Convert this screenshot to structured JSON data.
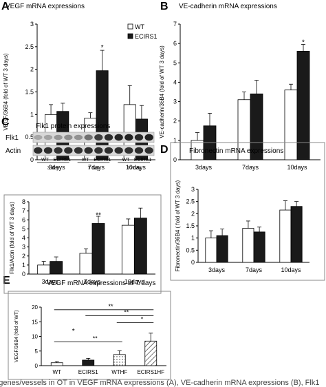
{
  "panel_letters": {
    "a": "A",
    "b": "B",
    "c": "C",
    "d": "D",
    "e": "E"
  },
  "blot": {
    "rows": [
      "Flk1",
      "Actin"
    ],
    "groups": [
      {
        "labels": [
          "WT",
          "ECIRS1"
        ],
        "time": "3 day"
      },
      {
        "labels": [
          "WT",
          "ECIRS1"
        ],
        "time": "7 day"
      },
      {
        "labels": [
          "WT",
          "ECIRS1"
        ],
        "time": "10 day"
      }
    ],
    "flk1_intensity": [
      0.3,
      0.32,
      0.38,
      0.42,
      0.4,
      0.55,
      0.8,
      0.88,
      0.92,
      0.93,
      0.9,
      0.95
    ],
    "actin_intensity": [
      0.88,
      0.88,
      0.86,
      0.88,
      0.86,
      0.88,
      0.86,
      0.88,
      0.88,
      0.86,
      0.88,
      0.87
    ]
  },
  "caption_fragment": "of genes/vessels in OT in VEGF mRNA expressions (A), VE-cadherin mRNA expressions (B), Flk1",
  "colors": {
    "wt": "#ffffff",
    "ecirs1": "#1a1a1a",
    "axis": "#000000",
    "frame": "#888888"
  },
  "chart_data": [
    {
      "id": "A",
      "type": "bar",
      "title": "VEGF mRNA expressions",
      "ylabel": "VEGF/36B4 (fold of WT 3 days)",
      "categories": [
        "3days",
        "7days",
        "10days"
      ],
      "ylim": [
        0,
        3
      ],
      "yticks": [
        0,
        0.5,
        1,
        1.5,
        2,
        2.5,
        3
      ],
      "legend": "top-right",
      "series": [
        {
          "name": "WT",
          "values": [
            1.0,
            0.92,
            1.22
          ],
          "errors": [
            0.22,
            0.12,
            0.42
          ]
        },
        {
          "name": "ECIRS1",
          "values": [
            1.07,
            1.97,
            0.9
          ],
          "errors": [
            0.18,
            0.45,
            0.3
          ]
        }
      ],
      "annotations": [
        {
          "text": "*",
          "category": 1,
          "y": 2.5
        }
      ]
    },
    {
      "id": "B",
      "type": "bar",
      "title": "VE-cadherin mRNA expressions",
      "ylabel": "VE-cadherin/36B4 (fold of WT 3 days)",
      "categories": [
        "3days",
        "7days",
        "10days"
      ],
      "ylim": [
        0,
        7
      ],
      "yticks": [
        0,
        1,
        2,
        3,
        4,
        5,
        6,
        7
      ],
      "series": [
        {
          "name": "WT",
          "values": [
            1.0,
            3.1,
            3.6
          ],
          "errors": [
            0.4,
            0.4,
            0.3
          ]
        },
        {
          "name": "ECIRS1",
          "values": [
            1.75,
            3.4,
            5.6
          ],
          "errors": [
            0.65,
            0.7,
            0.35
          ]
        }
      ],
      "annotations": [
        {
          "text": "*",
          "category": 2,
          "y": 6.1
        }
      ]
    },
    {
      "id": "C",
      "type": "bar",
      "title": "Flk1 protein expressions",
      "ylabel": "Flk1/Actin (fold of WT 3 days)",
      "categories": [
        "3days",
        "7days",
        "10days"
      ],
      "ylim": [
        0,
        8
      ],
      "yticks": [
        0,
        1,
        2,
        3,
        4,
        5,
        6,
        7,
        8
      ],
      "series": [
        {
          "name": "WT",
          "values": [
            1.0,
            2.3,
            5.4
          ],
          "errors": [
            0.4,
            0.5,
            0.7
          ]
        },
        {
          "name": "ECIRS1",
          "values": [
            1.4,
            5.6,
            6.2
          ],
          "errors": [
            0.5,
            0.8,
            1.1
          ]
        }
      ],
      "annotations": [
        {
          "text": "**",
          "category": 1,
          "y": 6.6
        }
      ]
    },
    {
      "id": "D",
      "type": "bar",
      "title": "Fibronectin mRNA expressions",
      "ylabel": "Fibronectin/36B4 ( fold of WT 3 days)",
      "categories": [
        "3days",
        "7days",
        "10days"
      ],
      "ylim": [
        0,
        3
      ],
      "yticks": [
        0,
        0.5,
        1,
        1.5,
        2,
        2.5,
        3
      ],
      "series": [
        {
          "name": "WT",
          "values": [
            1.0,
            1.4,
            2.15
          ],
          "errors": [
            0.3,
            0.3,
            0.38
          ]
        },
        {
          "name": "ECIRS1",
          "values": [
            1.1,
            1.25,
            2.3
          ],
          "errors": [
            0.27,
            0.2,
            0.2
          ]
        }
      ]
    },
    {
      "id": "E",
      "type": "bar",
      "title": "VEGF mRNA expressions at 7 days",
      "ylabel": "VEGF/36B4 (fold of WT)",
      "categories": [
        "WT",
        "ECIRS1",
        "WTHF",
        "ECIRS1HF"
      ],
      "ylim": [
        0,
        20
      ],
      "yticks": [
        0,
        5,
        10,
        15,
        20
      ],
      "series": [
        {
          "name": "",
          "values": [
            1.0,
            1.9,
            3.8,
            8.4
          ],
          "errors": [
            0.4,
            0.6,
            1.3,
            2.7
          ],
          "fills": [
            "white",
            "black",
            "dotted",
            "hatched"
          ]
        }
      ],
      "annotations": [
        {
          "text": "*",
          "from": 0,
          "to": 0,
          "y": 11.8
        },
        {
          "text": "**",
          "from": 0,
          "to": 2,
          "y": 8.1
        },
        {
          "text": "**",
          "from": 0,
          "to": 3,
          "y": 19.1
        },
        {
          "text": "**",
          "from": 1,
          "to": 3,
          "y": 17.1
        },
        {
          "text": "*",
          "from": 2,
          "to": 3,
          "y": 14.7
        }
      ]
    }
  ]
}
